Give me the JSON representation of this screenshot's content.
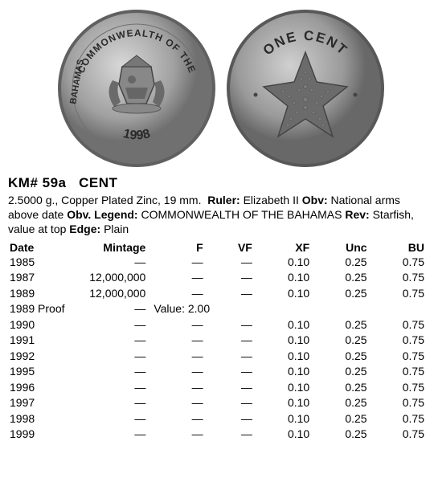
{
  "coin_images": {
    "obverse": {
      "type": "coin-circle",
      "top_text": "COMMONWEALTH OF THE",
      "side_text": "BAHAMAS",
      "bottom_text": "1998",
      "colors": {
        "rim": "#888888",
        "face": "#b5b5b5",
        "dark": "#555555",
        "text": "#2a2a2a"
      }
    },
    "reverse": {
      "type": "coin-circle",
      "top_text": "ONE CENT",
      "motif": "starfish",
      "colors": {
        "rim": "#808080",
        "face": "#b0b0b0",
        "starfish": "#666666",
        "text": "#2a2a2a"
      }
    }
  },
  "header": {
    "km": "KM# 59a",
    "denomination": "CENT"
  },
  "description": {
    "specs": "2.5000 g., Copper Plated Zinc, 19 mm.",
    "ruler_label": "Ruler:",
    "ruler": "Elizabeth II",
    "obv_label": "Obv:",
    "obv": "National arms above date",
    "obv_legend_label": "Obv. Legend:",
    "obv_legend": "COMMONWEALTH OF THE BAHAMAS",
    "rev_label": "Rev:",
    "rev": "Starfish, value at top",
    "edge_label": "Edge:",
    "edge": "Plain"
  },
  "table": {
    "columns": [
      "Date",
      "Mintage",
      "F",
      "VF",
      "XF",
      "Unc",
      "BU"
    ],
    "rows": [
      {
        "date": "1985",
        "mintage": "—",
        "f": "—",
        "vf": "—",
        "xf": "0.10",
        "unc": "0.25",
        "bu": "0.75"
      },
      {
        "date": "1987",
        "mintage": "12,000,000",
        "f": "—",
        "vf": "—",
        "xf": "0.10",
        "unc": "0.25",
        "bu": "0.75"
      },
      {
        "date": "1989",
        "mintage": "12,000,000",
        "f": "—",
        "vf": "—",
        "xf": "0.10",
        "unc": "0.25",
        "bu": "0.75"
      },
      {
        "date": "1989 Proof",
        "mintage": "—",
        "f": "Value: 2.00",
        "vf": "",
        "xf": "",
        "unc": "",
        "bu": ""
      },
      {
        "date": "1990",
        "mintage": "—",
        "f": "—",
        "vf": "—",
        "xf": "0.10",
        "unc": "0.25",
        "bu": "0.75"
      },
      {
        "date": "1991",
        "mintage": "—",
        "f": "—",
        "vf": "—",
        "xf": "0.10",
        "unc": "0.25",
        "bu": "0.75"
      },
      {
        "date": "1992",
        "mintage": "—",
        "f": "—",
        "vf": "—",
        "xf": "0.10",
        "unc": "0.25",
        "bu": "0.75"
      },
      {
        "date": "1995",
        "mintage": "—",
        "f": "—",
        "vf": "—",
        "xf": "0.10",
        "unc": "0.25",
        "bu": "0.75"
      },
      {
        "date": "1996",
        "mintage": "—",
        "f": "—",
        "vf": "—",
        "xf": "0.10",
        "unc": "0.25",
        "bu": "0.75"
      },
      {
        "date": "1997",
        "mintage": "—",
        "f": "—",
        "vf": "—",
        "xf": "0.10",
        "unc": "0.25",
        "bu": "0.75"
      },
      {
        "date": "1998",
        "mintage": "—",
        "f": "—",
        "vf": "—",
        "xf": "0.10",
        "unc": "0.25",
        "bu": "0.75"
      },
      {
        "date": "1999",
        "mintage": "—",
        "f": "—",
        "vf": "—",
        "xf": "0.10",
        "unc": "0.25",
        "bu": "0.75"
      }
    ]
  }
}
